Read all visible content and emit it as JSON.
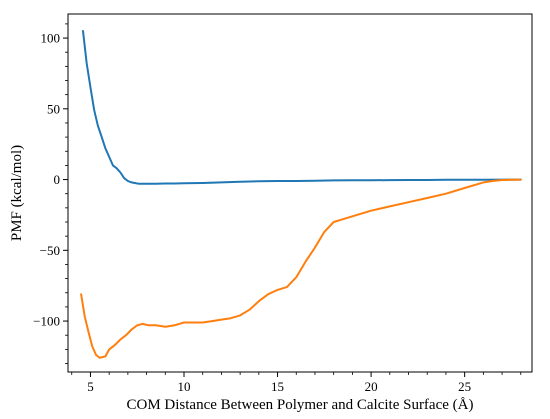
{
  "chart_data": {
    "type": "line",
    "title": "",
    "xlabel": "COM Distance Between Polymer and Calcite Surface (Å)",
    "ylabel": "PMF (kcal/mol)",
    "xlim": [
      3.8,
      28.6
    ],
    "ylim": [
      -136,
      117
    ],
    "xticks": [
      5,
      10,
      15,
      20,
      25
    ],
    "yticks": [
      -100,
      -50,
      0,
      50,
      100
    ],
    "x_minor_step": 1,
    "y_minor_step": 10,
    "grid": false,
    "legend": "none",
    "series": [
      {
        "color": "#1f77b4",
        "x": [
          4.6,
          4.8,
          5.0,
          5.2,
          5.4,
          5.6,
          5.8,
          6.0,
          6.2,
          6.4,
          6.6,
          6.8,
          7.0,
          7.2,
          7.4,
          7.6,
          7.8,
          8.0,
          8.5,
          9.0,
          9.5,
          10,
          11,
          12,
          13,
          14,
          15,
          16,
          17,
          18,
          19,
          20,
          21,
          22,
          23,
          24,
          25,
          26,
          27,
          28
        ],
        "y": [
          105,
          82,
          65,
          49,
          38,
          30,
          22,
          16,
          10,
          8,
          5,
          1,
          -1,
          -2,
          -2.5,
          -3,
          -3,
          -3,
          -3,
          -2.8,
          -2.8,
          -2.6,
          -2.4,
          -2,
          -1.5,
          -1.2,
          -1,
          -1,
          -0.8,
          -0.6,
          -0.5,
          -0.5,
          -0.4,
          -0.3,
          -0.3,
          -0.2,
          -0.2,
          -0.1,
          0,
          0
        ]
      },
      {
        "color": "#ff7f0e",
        "x": [
          4.5,
          4.7,
          4.9,
          5.1,
          5.3,
          5.5,
          5.8,
          6.0,
          6.3,
          6.6,
          6.9,
          7.2,
          7.5,
          7.8,
          8.1,
          8.5,
          9.0,
          9.5,
          10.0,
          10.5,
          11.0,
          11.5,
          12.0,
          12.5,
          13.0,
          13.5,
          14.0,
          14.5,
          15.0,
          15.5,
          16.0,
          16.5,
          17.0,
          17.5,
          18.0,
          18.5,
          19.0,
          20.0,
          21.0,
          22.0,
          23.0,
          24.0,
          25.0,
          26.0,
          26.5,
          27.0,
          28.0
        ],
        "y": [
          -81,
          -97,
          -108,
          -118,
          -124,
          -126,
          -125,
          -120,
          -117,
          -113,
          -110,
          -106,
          -103,
          -102,
          -103,
          -103,
          -104,
          -103,
          -101,
          -101,
          -101,
          -100,
          -99,
          -98,
          -96,
          -92,
          -86,
          -81,
          -78,
          -76,
          -69,
          -58,
          -48,
          -37,
          -30,
          -28,
          -26,
          -22,
          -19,
          -16,
          -13,
          -10,
          -6,
          -2,
          -1,
          -0.3,
          0
        ]
      }
    ]
  }
}
